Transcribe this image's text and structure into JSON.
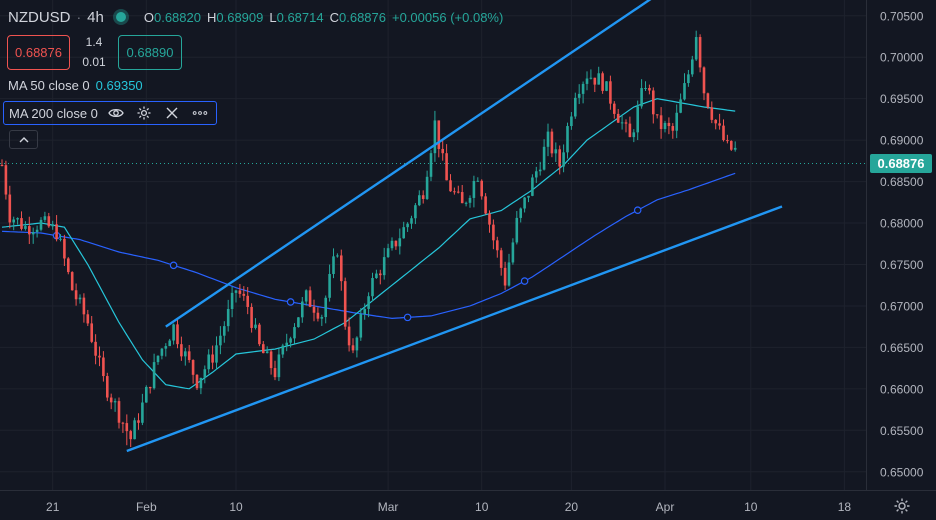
{
  "header": {
    "symbol": "NZDUSD",
    "interval": "4h",
    "ohlc": {
      "o_label": "O",
      "o_value": "0.68820",
      "h_label": "H",
      "h_value": "0.68909",
      "l_label": "L",
      "l_value": "0.68714",
      "c_label": "C",
      "c_value": "0.68876",
      "change": "+0.00056 (+0.08%)"
    }
  },
  "trade": {
    "sell_price": "0.68876",
    "spread_top": "1.4",
    "spread_bottom": "0.01",
    "buy_price": "0.68890"
  },
  "indicators": {
    "ma50_label": "MA 50 close 0",
    "ma50_value": "0.69350",
    "ma200_label": "MA 200 close 0"
  },
  "icons": [
    "eye-icon",
    "settings-icon",
    "close-icon",
    "more-icon",
    "chevron-up-icon",
    "gear-icon"
  ],
  "colors": {
    "background": "#131722",
    "up": "#26a69a",
    "down": "#ef5350",
    "ma50": "#26c6da",
    "ma200": "#2962ff",
    "trendline": "#2196f3"
  },
  "chart_data": {
    "type": "candlestick",
    "symbol": "NZDUSD",
    "interval": "4h",
    "last_price": "0.68876",
    "ylim": [
      0.6478,
      0.7069
    ],
    "y_ticks": [
      "0.70500",
      "0.70000",
      "0.69500",
      "0.69000",
      "0.68500",
      "0.68000",
      "0.67500",
      "0.67000",
      "0.66500",
      "0.66000",
      "0.65500",
      "0.65000"
    ],
    "x_ticks": [
      "21",
      "Feb",
      "10",
      "Mar",
      "10",
      "20",
      "Apr",
      "10",
      "18"
    ],
    "x_ticks_bar_index": [
      13,
      37,
      60,
      99,
      123,
      146,
      170,
      192,
      216
    ],
    "bar_count": 196,
    "closes_at_bar": [
      [
        0,
        0.687
      ],
      [
        2,
        0.681
      ],
      [
        6,
        0.6795
      ],
      [
        10,
        0.68
      ],
      [
        14,
        0.679
      ],
      [
        18,
        0.672
      ],
      [
        22,
        0.668
      ],
      [
        26,
        0.661
      ],
      [
        30,
        0.657
      ],
      [
        33,
        0.654
      ],
      [
        36,
        0.658
      ],
      [
        40,
        0.664
      ],
      [
        44,
        0.6675
      ],
      [
        46,
        0.665
      ],
      [
        50,
        0.661
      ],
      [
        54,
        0.664
      ],
      [
        58,
        0.669
      ],
      [
        60,
        0.672
      ],
      [
        63,
        0.67
      ],
      [
        66,
        0.665
      ],
      [
        70,
        0.662
      ],
      [
        74,
        0.667
      ],
      [
        78,
        0.671
      ],
      [
        82,
        0.669
      ],
      [
        86,
        0.677
      ],
      [
        88,
        0.668
      ],
      [
        90,
        0.664
      ],
      [
        94,
        0.672
      ],
      [
        100,
        0.677
      ],
      [
        104,
        0.68
      ],
      [
        108,
        0.684
      ],
      [
        111,
        0.692
      ],
      [
        114,
        0.685
      ],
      [
        118,
        0.682
      ],
      [
        122,
        0.686
      ],
      [
        126,
        0.678
      ],
      [
        129,
        0.673
      ],
      [
        132,
        0.68
      ],
      [
        136,
        0.685
      ],
      [
        140,
        0.69
      ],
      [
        143,
        0.687
      ],
      [
        147,
        0.696
      ],
      [
        150,
        0.698
      ],
      [
        154,
        0.697
      ],
      [
        158,
        0.693
      ],
      [
        161,
        0.69
      ],
      [
        165,
        0.697
      ],
      [
        168,
        0.692
      ],
      [
        172,
        0.691
      ],
      [
        176,
        0.698
      ],
      [
        178,
        0.703
      ],
      [
        180,
        0.696
      ],
      [
        183,
        0.692
      ],
      [
        186,
        0.689
      ],
      [
        188,
        0.68876
      ]
    ],
    "lows_marked": [
      [
        32,
        0.6532
      ]
    ],
    "highs_marked": [
      [
        178,
        0.7032
      ]
    ],
    "series": [
      {
        "name": "MA 50 close 0",
        "last": "0.69350",
        "points": [
          [
            0,
            0.6795
          ],
          [
            10,
            0.68
          ],
          [
            16,
            0.6795
          ],
          [
            22,
            0.675
          ],
          [
            30,
            0.668
          ],
          [
            36,
            0.6635
          ],
          [
            42,
            0.6605
          ],
          [
            48,
            0.66
          ],
          [
            54,
            0.662
          ],
          [
            60,
            0.6642
          ],
          [
            70,
            0.6648
          ],
          [
            80,
            0.666
          ],
          [
            88,
            0.668
          ],
          [
            96,
            0.671
          ],
          [
            104,
            0.674
          ],
          [
            112,
            0.677
          ],
          [
            120,
            0.6805
          ],
          [
            128,
            0.6815
          ],
          [
            136,
            0.684
          ],
          [
            144,
            0.687
          ],
          [
            150,
            0.69
          ],
          [
            156,
            0.692
          ],
          [
            162,
            0.694
          ],
          [
            168,
            0.695
          ],
          [
            174,
            0.6945
          ],
          [
            180,
            0.694
          ],
          [
            188,
            0.6935
          ]
        ]
      },
      {
        "name": "MA 200 close 0",
        "points": [
          [
            0,
            0.679
          ],
          [
            10,
            0.6788
          ],
          [
            20,
            0.678
          ],
          [
            30,
            0.6765
          ],
          [
            40,
            0.6755
          ],
          [
            50,
            0.674
          ],
          [
            60,
            0.6722
          ],
          [
            70,
            0.6708
          ],
          [
            80,
            0.67
          ],
          [
            90,
            0.6692
          ],
          [
            100,
            0.6685
          ],
          [
            110,
            0.6688
          ],
          [
            120,
            0.67
          ],
          [
            128,
            0.6715
          ],
          [
            136,
            0.6735
          ],
          [
            144,
            0.676
          ],
          [
            152,
            0.6785
          ],
          [
            160,
            0.6808
          ],
          [
            168,
            0.6828
          ],
          [
            176,
            0.684
          ],
          [
            182,
            0.685
          ],
          [
            188,
            0.686
          ]
        ]
      }
    ],
    "trendlines": [
      {
        "name": "upper-channel-line",
        "from": [
          42,
          0.6675
        ],
        "to": [
          171,
          0.7085
        ]
      },
      {
        "name": "lower-channel-line",
        "from": [
          32,
          0.6525
        ],
        "to": [
          200,
          0.682
        ]
      }
    ]
  }
}
